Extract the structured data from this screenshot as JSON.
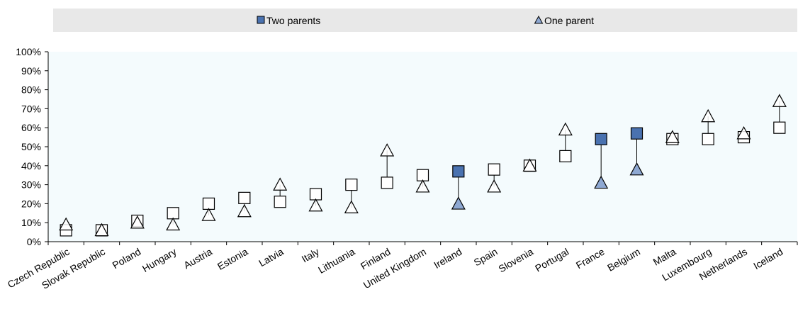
{
  "chart_data": {
    "type": "scatter",
    "categories": [
      "Czech Republic",
      "Slovak Republic",
      "Poland",
      "Hungary",
      "Austria",
      "Estonia",
      "Latvia",
      "Italy",
      "Lithuania",
      "Finland",
      "United Kingdom",
      "Ireland",
      "Spain",
      "Slovenia",
      "Portugal",
      "France",
      "Belgium",
      "Malta",
      "Luxembourg",
      "Netherlands",
      "Iceland"
    ],
    "series": [
      {
        "name": "Two parents",
        "marker": "square",
        "values": [
          6,
          6,
          11,
          15,
          20,
          23,
          21,
          25,
          30,
          31,
          35,
          37,
          38,
          40,
          45,
          54,
          57,
          54,
          54,
          55,
          60
        ]
      },
      {
        "name": "One parent",
        "marker": "triangle",
        "values": [
          9,
          6,
          10,
          9,
          14,
          16,
          30,
          19,
          18,
          48,
          29,
          20,
          29,
          40,
          59,
          31,
          38,
          55,
          66,
          57,
          74
        ]
      }
    ],
    "highlighted": [
      "Ireland",
      "France",
      "Belgium"
    ],
    "yticks": [
      "0%",
      "10%",
      "20%",
      "30%",
      "40%",
      "50%",
      "60%",
      "70%",
      "80%",
      "90%",
      "100%"
    ],
    "ylim": [
      0,
      100
    ],
    "legend_position": "top",
    "grid": false,
    "colors": {
      "highlight_square": "#4a72b0",
      "highlight_triangle": "#8ea8d2",
      "marker_fill": "#ffffff",
      "marker_stroke": "#000000",
      "plot_bg": "#f4fbfd",
      "legend_bg": "#e8e8e8",
      "legend_square": "#4a72b0",
      "legend_triangle": "#8ea8d2"
    }
  }
}
